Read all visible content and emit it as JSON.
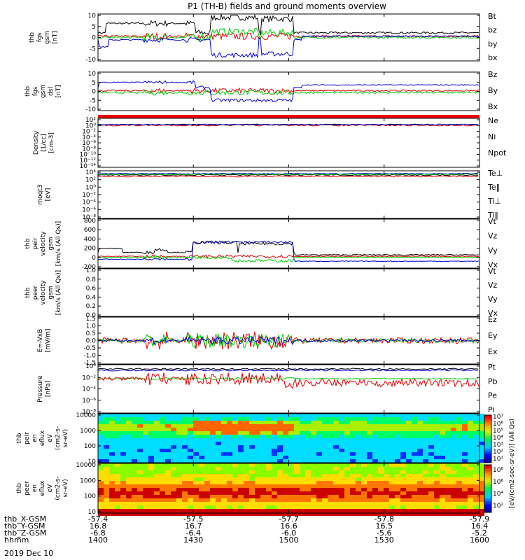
{
  "title": "P1 (TH-B) fields and ground moments overview",
  "date_label": "2019 Dec 10",
  "time_axis": {
    "row_labels": [
      "thb_X-GSM",
      "thb_Y-GSM",
      "thb_Z-GSM",
      "hhmm"
    ],
    "ticks": [
      {
        "hhmm": "1400",
        "x": "-57.4",
        "y": "16.8",
        "z": "-6.8"
      },
      {
        "hhmm": "1430",
        "x": "-57.5",
        "y": "16.7",
        "z": "-6.4"
      },
      {
        "hhmm": "1500",
        "x": "-57.7",
        "y": "16.6",
        "z": "-6.0"
      },
      {
        "hhmm": "1530",
        "x": "-57.8",
        "y": "16.5",
        "z": "-5.6"
      },
      {
        "hhmm": "1600",
        "x": "-57.9",
        "y": "16.4",
        "z": "-5.2"
      }
    ]
  },
  "colorbar": {
    "label": "[eV/(cm2-sec-sr-eV)] (All Qs)",
    "ticks_top": [
      "10⁷",
      "10⁶",
      "10⁵",
      "10⁴",
      "10³",
      "10²",
      "10¹"
    ],
    "ticks_bottom": [
      "10⁸",
      "10⁶",
      "10⁴",
      "10²"
    ]
  },
  "colors": {
    "red": "#dd0000",
    "green": "#00cc00",
    "blue": "#0000cc",
    "black": "#000000"
  },
  "chart_data": [
    {
      "type": "line",
      "ylabel": [
        "thb",
        "fgs",
        "gsm",
        "[nT]"
      ],
      "ylim": [
        -10,
        10
      ],
      "yticks": [
        "10",
        "5",
        "0",
        "-5",
        "-10"
      ],
      "series": [
        {
          "name": "Bt",
          "color": "black"
        },
        {
          "name": "bz",
          "color": "red"
        },
        {
          "name": "by",
          "color": "green"
        },
        {
          "name": "bx",
          "color": "blue"
        }
      ]
    },
    {
      "type": "line",
      "ylabel": [
        "thb",
        "fgs",
        "gsm",
        "dsl",
        "[nT]"
      ],
      "ylim": [
        -15,
        15
      ],
      "yticks": [
        "10",
        "5",
        "0",
        "-5",
        "-10"
      ],
      "series": [
        {
          "name": "Bz",
          "color": "red"
        },
        {
          "name": "By",
          "color": "green"
        },
        {
          "name": "Bx",
          "color": "blue"
        }
      ]
    },
    {
      "type": "line",
      "ylabel": [
        "Density",
        "[1/cc]",
        "[cm-3]"
      ],
      "scale": "log",
      "yticks": [
        "10²",
        "10⁰",
        "10⁻²",
        "10⁻⁴",
        "10⁻⁶",
        "10⁻⁸",
        "10⁻¹⁰",
        "10⁻¹²",
        "10⁻¹⁴"
      ],
      "series": [
        {
          "name": "Ne",
          "color": "red"
        },
        {
          "name": "Ni",
          "color": "black"
        },
        {
          "name": "Npot",
          "color": "blue"
        }
      ]
    },
    {
      "type": "line",
      "ylabel": [
        "moqt3",
        "[eV]"
      ],
      "scale": "log",
      "yticks": [
        "10⁴",
        "10²",
        "10⁰",
        "10⁻²",
        "10⁻⁴",
        "10⁻⁶",
        "10⁻⁸"
      ],
      "series": [
        {
          "name": "Te⊥",
          "color": "red"
        },
        {
          "name": "Te‖",
          "color": "black"
        },
        {
          "name": "Ti⊥",
          "color": "blue"
        },
        {
          "name": "Ti‖",
          "color": "green"
        }
      ]
    },
    {
      "type": "line",
      "ylabel": [
        "thb",
        "peir",
        "velocity",
        "gsm",
        "[km/s (All Qs)]"
      ],
      "ylim": [
        -200,
        800
      ],
      "yticks": [
        "800",
        "600",
        "400",
        "200",
        "0",
        "-200"
      ],
      "series": [
        {
          "name": "Vt",
          "color": "black"
        },
        {
          "name": "Vz",
          "color": "red"
        },
        {
          "name": "Vy",
          "color": "green"
        },
        {
          "name": "Vx",
          "color": "blue"
        }
      ]
    },
    {
      "type": "line",
      "ylabel": [
        "thb",
        "peer",
        "velocity",
        "gsm",
        "[km/s (All Qs)]"
      ],
      "ylim": [
        0,
        1
      ],
      "yticks": [
        "1.0",
        "0.8",
        "0.6",
        "0.4",
        "0.2",
        "0.0"
      ],
      "series": [
        {
          "name": "Vt",
          "color": "black"
        },
        {
          "name": "Vz",
          "color": "red"
        },
        {
          "name": "Vy",
          "color": "green"
        },
        {
          "name": "Vx",
          "color": "blue"
        }
      ]
    },
    {
      "type": "line",
      "ylabel": [
        "E=-VxB",
        "[mV/m]"
      ],
      "ylim": [
        -1.5,
        1.5
      ],
      "yticks": [
        "1.5",
        "1.0",
        "0.5",
        "0.0",
        "-0.5",
        "-1.0",
        "-1.5"
      ],
      "series": [
        {
          "name": "Ez",
          "color": "red"
        },
        {
          "name": "Ey",
          "color": "green"
        },
        {
          "name": "Ex",
          "color": "blue"
        }
      ]
    },
    {
      "type": "line",
      "ylabel": [
        "Pressure",
        "[nPa]"
      ],
      "scale": "log",
      "yticks": [
        "10⁰",
        "10⁻²",
        "10⁻⁴",
        "10⁻⁶",
        "10⁻⁸"
      ],
      "series": [
        {
          "name": "Pt",
          "color": "black"
        },
        {
          "name": "Pb",
          "color": "red"
        },
        {
          "name": "Pe",
          "color": "green"
        },
        {
          "name": "Pi",
          "color": "blue"
        }
      ]
    },
    {
      "type": "heatmap",
      "ylabel": [
        "thb",
        "peir",
        "en",
        "eflux",
        "eV",
        "(cm2-s-",
        "sr-eV)"
      ],
      "scale": "log",
      "yticks": [
        "10000",
        "1000",
        "100",
        "10"
      ]
    },
    {
      "type": "heatmap",
      "ylabel": [
        "thb",
        "peer",
        "en",
        "eflux",
        "eV",
        "(cm2-s-",
        "sr-eV)"
      ],
      "scale": "log",
      "yticks": [
        "10000",
        "1000",
        "100",
        "10"
      ]
    }
  ]
}
